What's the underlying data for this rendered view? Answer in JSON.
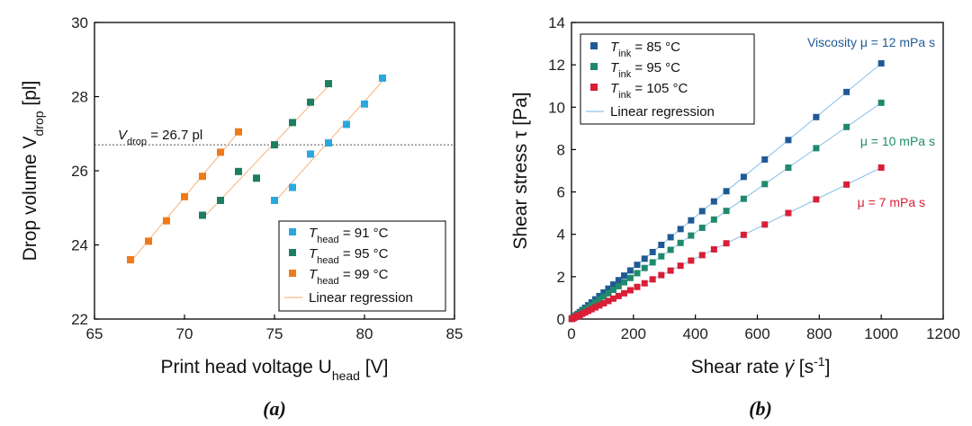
{
  "chart_data": [
    {
      "type": "scatter",
      "panel_label": "(a)",
      "xlabel": "Print head voltage U",
      "xlabel_sub": "head",
      "xlabel_unit": " [V]",
      "ylabel": "Drop volume V",
      "ylabel_sub": "drop",
      "ylabel_unit": " [pl]",
      "xlim": [
        65,
        85
      ],
      "ylim": [
        22,
        30
      ],
      "xticks": [
        "65",
        "70",
        "75",
        "80",
        "85"
      ],
      "yticks": [
        "22",
        "24",
        "26",
        "28",
        "30"
      ],
      "xtick_values": [
        65,
        70,
        75,
        80,
        85
      ],
      "ytick_values": [
        22,
        24,
        26,
        28,
        30
      ],
      "reference_line": {
        "y": 26.7,
        "label_var": "V",
        "label_sub": "drop",
        "label_rest": " = 26.7 pl"
      },
      "series": [
        {
          "name": "T",
          "name_sub": "head",
          "name_rest": " = 91 °C",
          "color": "#29a8e0",
          "x": [
            75,
            76,
            77,
            78,
            79,
            80,
            81
          ],
          "y": [
            25.2,
            25.55,
            26.45,
            26.75,
            27.25,
            27.8,
            28.5
          ]
        },
        {
          "name": "T",
          "name_sub": "head",
          "name_rest": " = 95 °C",
          "color": "#1c7f63",
          "x": [
            71,
            72,
            73,
            74,
            75,
            76,
            77,
            78
          ],
          "y": [
            24.8,
            25.2,
            25.98,
            25.8,
            26.7,
            27.3,
            27.85,
            28.35
          ]
        },
        {
          "name": "T",
          "name_sub": "head",
          "name_rest": " = 99 °C",
          "color": "#f07a1a",
          "x": [
            67,
            68,
            69,
            70,
            71,
            72,
            73
          ],
          "y": [
            23.6,
            24.1,
            24.65,
            25.3,
            25.85,
            26.5,
            27.05
          ]
        }
      ],
      "regression_label": "Linear regression",
      "regression_color": "#f5b98a",
      "legend_position": "bottom-right"
    },
    {
      "type": "scatter",
      "panel_label": "(b)",
      "xlabel": "Shear rate ",
      "xlabel_symbol": "γ̇",
      "xlabel_unit": " [s",
      "xlabel_sup": "-1",
      "xlabel_end": "]",
      "ylabel": "Shear stress τ [Pa]",
      "xlim": [
        0,
        1200
      ],
      "ylim": [
        0,
        14
      ],
      "xticks": [
        "0",
        "200",
        "400",
        "600",
        "800",
        "1000",
        "1200"
      ],
      "yticks": [
        "0",
        "2",
        "4",
        "6",
        "8",
        "10",
        "12",
        "14"
      ],
      "xtick_values": [
        0,
        200,
        400,
        600,
        800,
        1000,
        1200
      ],
      "ytick_values": [
        0,
        2,
        4,
        6,
        8,
        10,
        12,
        14
      ],
      "shear_rates": [
        1,
        3,
        6,
        10,
        15,
        20,
        27,
        35,
        44,
        54,
        65,
        77,
        90,
        104,
        119,
        135,
        152,
        170,
        190,
        212,
        236,
        262,
        290,
        320,
        352,
        386,
        422,
        460,
        500,
        556,
        624,
        700,
        790,
        888,
        1000
      ],
      "series": [
        {
          "name": "T",
          "name_sub": "ink",
          "name_rest": " = 85 °C",
          "color": "#1f5a96",
          "slope": 0.01207
        },
        {
          "name": "T",
          "name_sub": "ink",
          "name_rest": " = 95 °C",
          "color": "#1f8a6b",
          "slope": 0.01021
        },
        {
          "name": "T",
          "name_sub": "ink",
          "name_rest": " = 105 °C",
          "color": "#d91e36",
          "slope": 0.00715
        }
      ],
      "regression_label": "Linear regression",
      "regression_color": "#8fc3ea",
      "legend_position": "top-left",
      "annotations": [
        {
          "text": "Viscosity μ = 12 mPa s",
          "color": "#1f5a96"
        },
        {
          "text": "μ = 10 mPa s",
          "color": "#1f8a6b"
        },
        {
          "text": "μ = 7 mPa s",
          "color": "#d91e36"
        }
      ]
    }
  ]
}
